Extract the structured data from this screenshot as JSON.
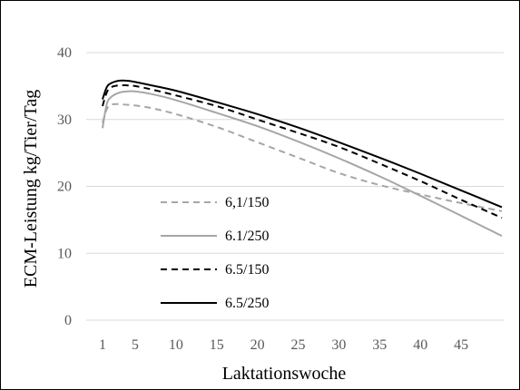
{
  "chart_data": {
    "type": "line",
    "title": "",
    "xlabel": "Laktationswoche",
    "ylabel": "ECM-Leistung kg/Tier/Tag",
    "xlim": [
      1,
      50
    ],
    "ylim": [
      0,
      40
    ],
    "xticks": [
      1,
      5,
      10,
      15,
      20,
      25,
      30,
      35,
      40,
      45
    ],
    "yticks": [
      0,
      10,
      20,
      30,
      40
    ],
    "grid": "horizontal",
    "legend_position": "lower-left",
    "series": [
      {
        "name": "6,1/150",
        "color": "#a6a6a6",
        "dash": "dashed",
        "points": [
          [
            1,
            29.5
          ],
          [
            1.5,
            31.5
          ],
          [
            2,
            32.2
          ],
          [
            3,
            32.3
          ],
          [
            4,
            32.2
          ],
          [
            5,
            32.1
          ],
          [
            7,
            31.7
          ],
          [
            10,
            30.8
          ],
          [
            15,
            28.9
          ],
          [
            20,
            26.6
          ],
          [
            25,
            24.3
          ],
          [
            30,
            22.0
          ],
          [
            35,
            20.2
          ],
          [
            40,
            18.8
          ],
          [
            45,
            17.5
          ],
          [
            50,
            16.3
          ]
        ]
      },
      {
        "name": "6.1/250",
        "color": "#a6a6a6",
        "dash": "solid",
        "points": [
          [
            1,
            28.7
          ],
          [
            1.5,
            32.2
          ],
          [
            2,
            33.3
          ],
          [
            3,
            34.0
          ],
          [
            4,
            34.2
          ],
          [
            5,
            34.2
          ],
          [
            7,
            33.8
          ],
          [
            10,
            32.9
          ],
          [
            15,
            31.0
          ],
          [
            20,
            29.0
          ],
          [
            25,
            26.7
          ],
          [
            30,
            24.2
          ],
          [
            35,
            21.5
          ],
          [
            40,
            18.6
          ],
          [
            45,
            15.6
          ],
          [
            50,
            12.6
          ]
        ]
      },
      {
        "name": "6.5/150",
        "color": "#000000",
        "dash": "dashed",
        "points": [
          [
            1,
            32.0
          ],
          [
            1.5,
            34.0
          ],
          [
            2,
            34.8
          ],
          [
            3,
            35.1
          ],
          [
            4,
            35.1
          ],
          [
            5,
            35.0
          ],
          [
            7,
            34.5
          ],
          [
            10,
            33.6
          ],
          [
            15,
            32.0
          ],
          [
            20,
            30.0
          ],
          [
            25,
            28.0
          ],
          [
            30,
            25.9
          ],
          [
            35,
            23.4
          ],
          [
            40,
            20.8
          ],
          [
            45,
            18.0
          ],
          [
            50,
            15.3
          ]
        ]
      },
      {
        "name": "6.5/250",
        "color": "#000000",
        "dash": "solid",
        "points": [
          [
            1,
            33.0
          ],
          [
            1.5,
            34.8
          ],
          [
            2,
            35.4
          ],
          [
            3,
            35.8
          ],
          [
            4,
            35.8
          ],
          [
            5,
            35.6
          ],
          [
            7,
            35.1
          ],
          [
            10,
            34.3
          ],
          [
            15,
            32.6
          ],
          [
            20,
            30.8
          ],
          [
            25,
            28.8
          ],
          [
            30,
            26.6
          ],
          [
            35,
            24.3
          ],
          [
            40,
            21.9
          ],
          [
            45,
            19.4
          ],
          [
            50,
            16.9
          ]
        ]
      }
    ]
  }
}
